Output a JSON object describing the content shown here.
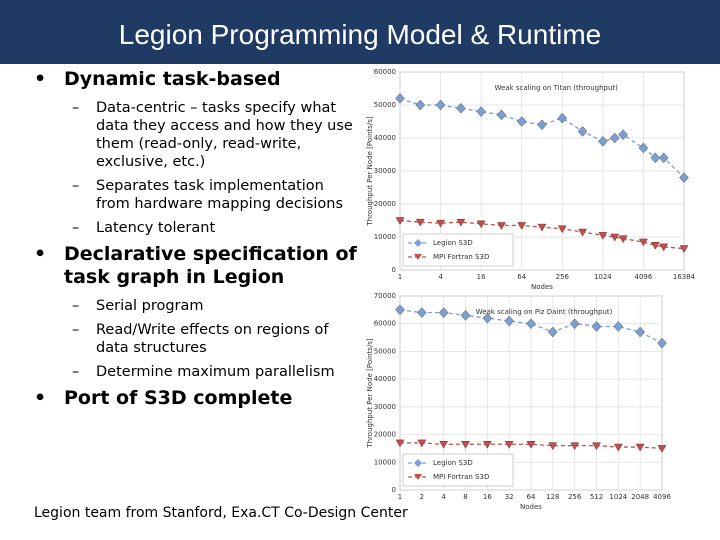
{
  "slide": {
    "title": "Legion Programming Model & Runtime",
    "bullets": [
      {
        "text": "Dynamic task-based",
        "subs": [
          "Data-centric – tasks specify what data they access and how they use them (read-only, read-write, exclusive, etc.)",
          "Separates task implementation from hardware mapping decisions",
          "Latency tolerant"
        ]
      },
      {
        "text": "Declarative specification of task graph in Legion",
        "subs": [
          "Serial program",
          "Read/Write effects on regions of data structures",
          "Determine maximum parallelism"
        ]
      },
      {
        "text": "Port of S3D complete",
        "subs": []
      }
    ],
    "footer": "Legion team from Stanford, Exa.CT Co-Design Center"
  },
  "chart_data": [
    {
      "type": "line",
      "title": "Weak scaling on Titan (throughput)",
      "xlabel": "Nodes",
      "ylabel": "Throughput Per Node [Points/s]",
      "x": [
        1,
        2,
        4,
        8,
        16,
        32,
        64,
        128,
        256,
        512,
        1024,
        1536,
        2048,
        4096,
        6144,
        8192,
        16384
      ],
      "series": [
        {
          "name": "Legion S3D",
          "color": "#7b9fd0",
          "marker": "diamond",
          "linestyle": "dashed",
          "values": [
            52000,
            50000,
            50000,
            49000,
            48000,
            47000,
            45000,
            44000,
            46000,
            42000,
            39000,
            40000,
            41000,
            37000,
            34000,
            34000,
            28000
          ]
        },
        {
          "name": "MPI Fortran S3D",
          "color": "#c0504d",
          "marker": "triangle",
          "linestyle": "dashed",
          "values": [
            15000,
            14500,
            14200,
            14500,
            14000,
            13500,
            13500,
            13000,
            12500,
            11500,
            10500,
            10000,
            9500,
            8500,
            7500,
            7000,
            6500
          ]
        }
      ],
      "xscale": "log",
      "xlim": [
        1,
        16384
      ],
      "xticks": [
        1,
        4,
        16,
        64,
        256,
        1024,
        4096,
        16384
      ],
      "ylim": [
        0,
        60000
      ],
      "yticks": [
        0,
        10000,
        20000,
        30000,
        40000,
        50000,
        60000
      ],
      "grid": true,
      "legend": "lower left"
    },
    {
      "type": "line",
      "title": "Weak scaling on Piz Daint (throughput)",
      "xlabel": "Nodes",
      "ylabel": "Throughput Per Node [Points/s]",
      "x": [
        1,
        2,
        4,
        8,
        16,
        32,
        64,
        128,
        256,
        512,
        1024,
        2048,
        4096
      ],
      "series": [
        {
          "name": "Legion S3D",
          "color": "#7b9fd0",
          "marker": "diamond",
          "linestyle": "dashed",
          "values": [
            65000,
            64000,
            64000,
            63000,
            62000,
            61000,
            60000,
            57000,
            60000,
            59000,
            59000,
            57000,
            53000
          ]
        },
        {
          "name": "MPI Fortran S3D",
          "color": "#c0504d",
          "marker": "triangle",
          "linestyle": "dashed",
          "values": [
            17000,
            17000,
            16500,
            16500,
            16500,
            16500,
            16500,
            16000,
            16000,
            16000,
            15500,
            15500,
            15000
          ]
        }
      ],
      "xscale": "log",
      "xlim": [
        1,
        4096
      ],
      "xticks": [
        1,
        2,
        4,
        8,
        16,
        32,
        64,
        128,
        256,
        512,
        1024,
        2048,
        4096
      ],
      "ylim": [
        0,
        70000
      ],
      "yticks": [
        0,
        10000,
        20000,
        30000,
        40000,
        50000,
        60000,
        70000
      ],
      "grid": true,
      "legend": "lower left"
    }
  ]
}
